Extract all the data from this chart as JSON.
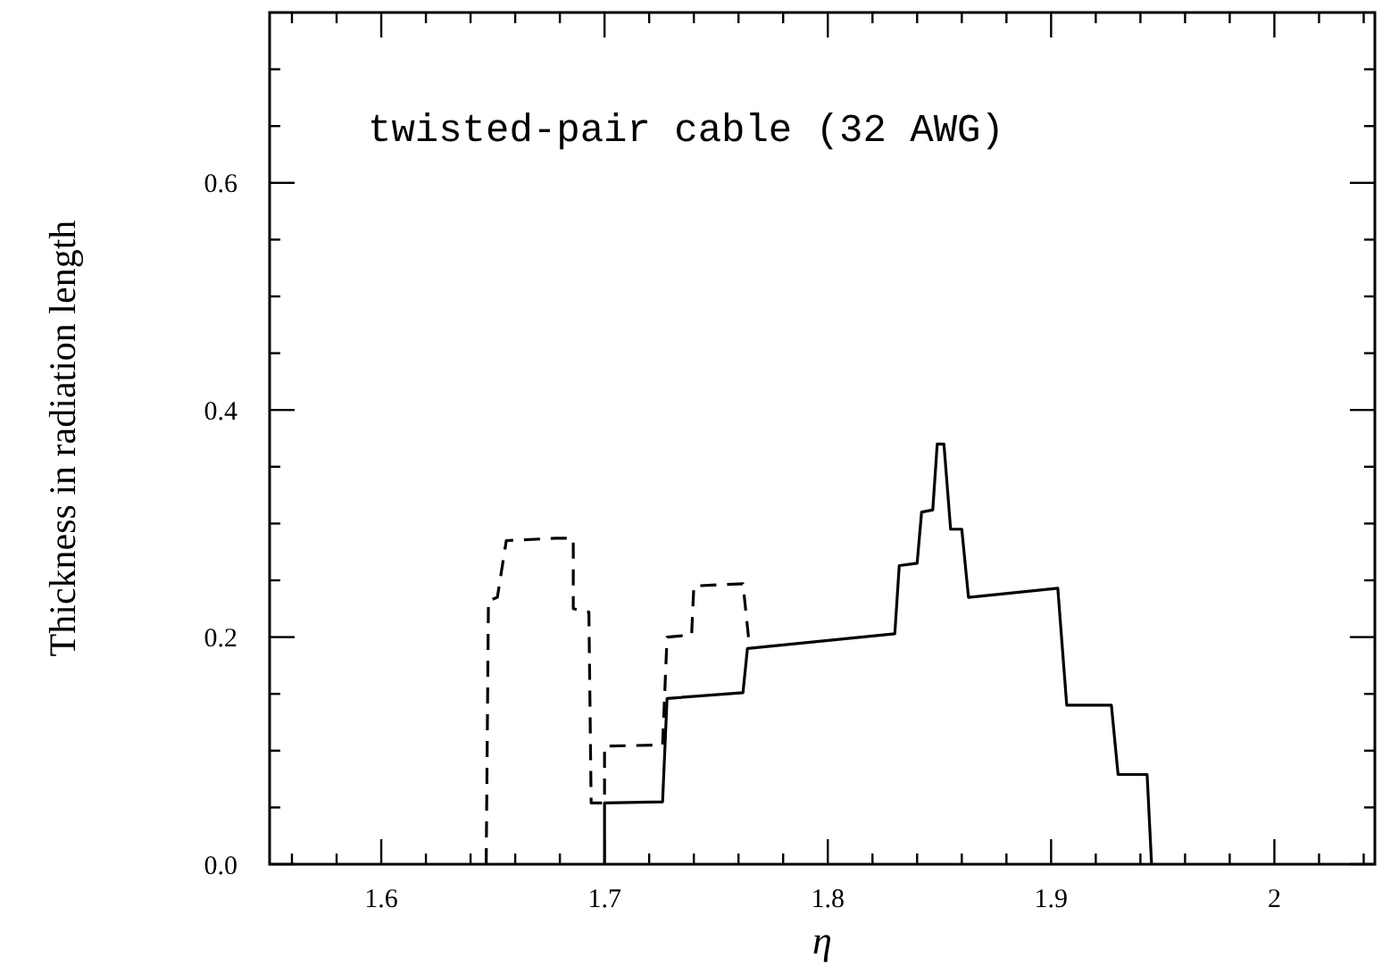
{
  "chart_data": {
    "type": "line",
    "xlabel": "η",
    "ylabel": "Thickness in radiation length",
    "annotations": [
      "twisted-pair cable (32 AWG)"
    ],
    "xlim": [
      1.55,
      2.045
    ],
    "ylim": [
      0,
      0.75
    ],
    "xticks": [
      {
        "value": 1.56,
        "label": null
      },
      {
        "value": 1.58,
        "label": null
      },
      1.6,
      {
        "value": 1.62,
        "label": null
      },
      {
        "value": 1.64,
        "label": null
      },
      {
        "value": 1.66,
        "label": null
      },
      {
        "value": 1.68,
        "label": null
      },
      1.7,
      {
        "value": 1.72,
        "label": null
      },
      {
        "value": 1.74,
        "label": null
      },
      {
        "value": 1.76,
        "label": null
      },
      {
        "value": 1.78,
        "label": null
      },
      1.8,
      {
        "value": 1.82,
        "label": null
      },
      {
        "value": 1.84,
        "label": null
      },
      {
        "value": 1.86,
        "label": null
      },
      {
        "value": 1.88,
        "label": null
      },
      1.9,
      {
        "value": 1.92,
        "label": null
      },
      {
        "value": 1.94,
        "label": null
      },
      {
        "value": 1.96,
        "label": null
      },
      {
        "value": 1.98,
        "label": null
      },
      2,
      {
        "value": 2.02,
        "label": null
      },
      {
        "value": 2.04,
        "label": null
      }
    ],
    "yticks": [
      {
        "value": 0,
        "label": "0.0"
      },
      {
        "value": 0.05,
        "label": null
      },
      {
        "value": 0.1,
        "label": null
      },
      {
        "value": 0.15,
        "label": null
      },
      0.2,
      {
        "value": 0.25,
        "label": null
      },
      {
        "value": 0.3,
        "label": null
      },
      {
        "value": 0.35,
        "label": null
      },
      0.4,
      {
        "value": 0.45,
        "label": null
      },
      {
        "value": 0.5,
        "label": null
      },
      {
        "value": 0.55,
        "label": null
      },
      0.6,
      {
        "value": 0.65,
        "label": null
      },
      {
        "value": 0.7,
        "label": null
      }
    ],
    "grid": false,
    "marker": "none",
    "series": [
      {
        "color": "#000000",
        "line_style": "solid",
        "x": [
          1.7,
          1.7,
          1.726,
          1.728,
          1.762,
          1.764,
          1.83,
          1.832,
          1.84,
          1.842,
          1.847,
          1.849,
          1.852,
          1.855,
          1.86,
          1.863,
          1.903,
          1.907,
          1.927,
          1.93,
          1.943,
          1.945
        ],
        "values": [
          0,
          0.054,
          0.055,
          0.146,
          0.151,
          0.19,
          0.203,
          0.263,
          0.265,
          0.31,
          0.312,
          0.37,
          0.37,
          0.295,
          0.295,
          0.235,
          0.243,
          0.14,
          0.14,
          0.079,
          0.079,
          0
        ]
      },
      {
        "color": "#000000",
        "line_style": "dashed",
        "x": [
          1.647,
          1.648,
          1.652,
          1.656,
          1.678,
          1.686,
          1.686,
          1.693,
          1.694,
          1.7,
          1.7,
          1.726,
          1.728,
          1.739,
          1.74,
          1.762,
          1.765
        ],
        "values": [
          0,
          0.232,
          0.235,
          0.285,
          0.287,
          0.287,
          0.225,
          0.222,
          0.054,
          0.054,
          0.104,
          0.105,
          0.2,
          0.202,
          0.245,
          0.247,
          0.19
        ]
      }
    ]
  }
}
